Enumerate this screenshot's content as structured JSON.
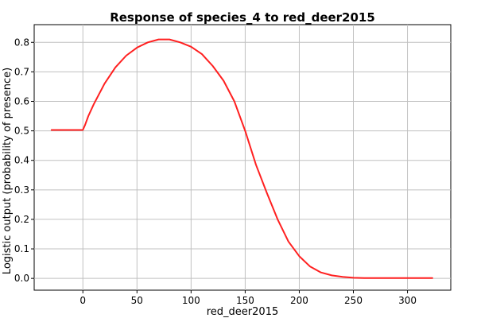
{
  "chart_data": {
    "type": "line",
    "title": "Response of species_4 to red_deer2015",
    "xlabel": "red_deer2015",
    "ylabel": "Logistic output (probability of presence)",
    "xlim": [
      -45,
      340
    ],
    "ylim": [
      -0.04,
      0.86
    ],
    "xticks": [
      0,
      50,
      100,
      150,
      200,
      250,
      300
    ],
    "yticks": [
      0.0,
      0.1,
      0.2,
      0.3,
      0.4,
      0.5,
      0.6,
      0.7,
      0.8
    ],
    "xtick_labels": [
      "0",
      "50",
      "100",
      "150",
      "200",
      "250",
      "300"
    ],
    "ytick_labels": [
      "0.0",
      "0.1",
      "0.2",
      "0.3",
      "0.4",
      "0.5",
      "0.6",
      "0.7",
      "0.8"
    ],
    "grid": true,
    "legend": "none",
    "colors": {
      "line": "#ff2020",
      "grid": "#c0c0c0",
      "axis": "#000000",
      "background": "#ffffff"
    },
    "series": [
      {
        "x": [
          -29,
          0,
          2,
          5,
          10,
          20,
          30,
          40,
          50,
          60,
          70,
          80,
          90,
          100,
          110,
          120,
          130,
          140,
          150,
          160,
          170,
          180,
          190,
          200,
          210,
          220,
          230,
          240,
          250,
          260,
          280,
          300,
          323
        ],
        "y": [
          0.503,
          0.503,
          0.52,
          0.55,
          0.59,
          0.66,
          0.715,
          0.755,
          0.782,
          0.8,
          0.81,
          0.81,
          0.8,
          0.785,
          0.76,
          0.72,
          0.67,
          0.6,
          0.5,
          0.385,
          0.29,
          0.2,
          0.125,
          0.075,
          0.04,
          0.02,
          0.01,
          0.005,
          0.002,
          0.001,
          0.001,
          0.001,
          0.001
        ]
      }
    ]
  }
}
